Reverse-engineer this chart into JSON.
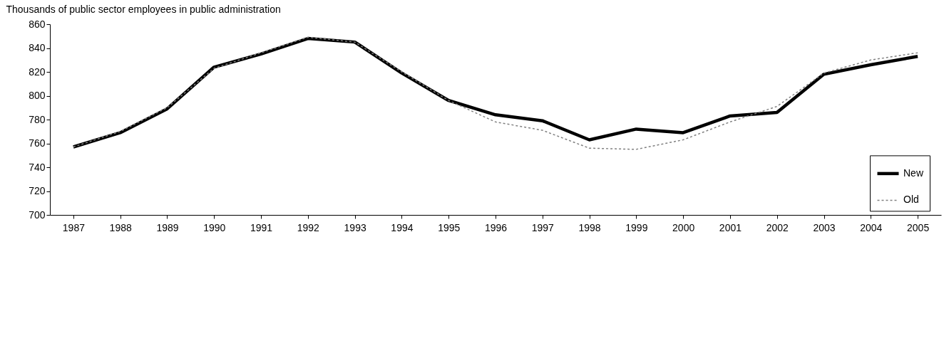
{
  "chart_data": {
    "type": "line",
    "ylabel": "Thousands of public sector employees in public administration",
    "categories": [
      "1987",
      "1988",
      "1989",
      "1990",
      "1991",
      "1992",
      "1993",
      "1994",
      "1995",
      "1996",
      "1997",
      "1998",
      "1999",
      "2000",
      "2001",
      "2002",
      "2003",
      "2004",
      "2005"
    ],
    "series": [
      {
        "name": "New",
        "color": "#000000",
        "line_style": "solid",
        "values": [
          757,
          769,
          789,
          824,
          835,
          848,
          845,
          819,
          796,
          784,
          779,
          763,
          772,
          769,
          783,
          786,
          818,
          826,
          833
        ]
      },
      {
        "name": "Old",
        "color": "#808080",
        "line_style": "dotted",
        "values": [
          757,
          770,
          790,
          823,
          836,
          849,
          845,
          820,
          796,
          778,
          771,
          756,
          755,
          763,
          778,
          791,
          819,
          830,
          836
        ]
      }
    ],
    "ylim": [
      700,
      860
    ],
    "yticks": [
      700,
      720,
      740,
      760,
      780,
      800,
      820,
      840,
      860
    ],
    "grid": false,
    "legend": "right"
  }
}
